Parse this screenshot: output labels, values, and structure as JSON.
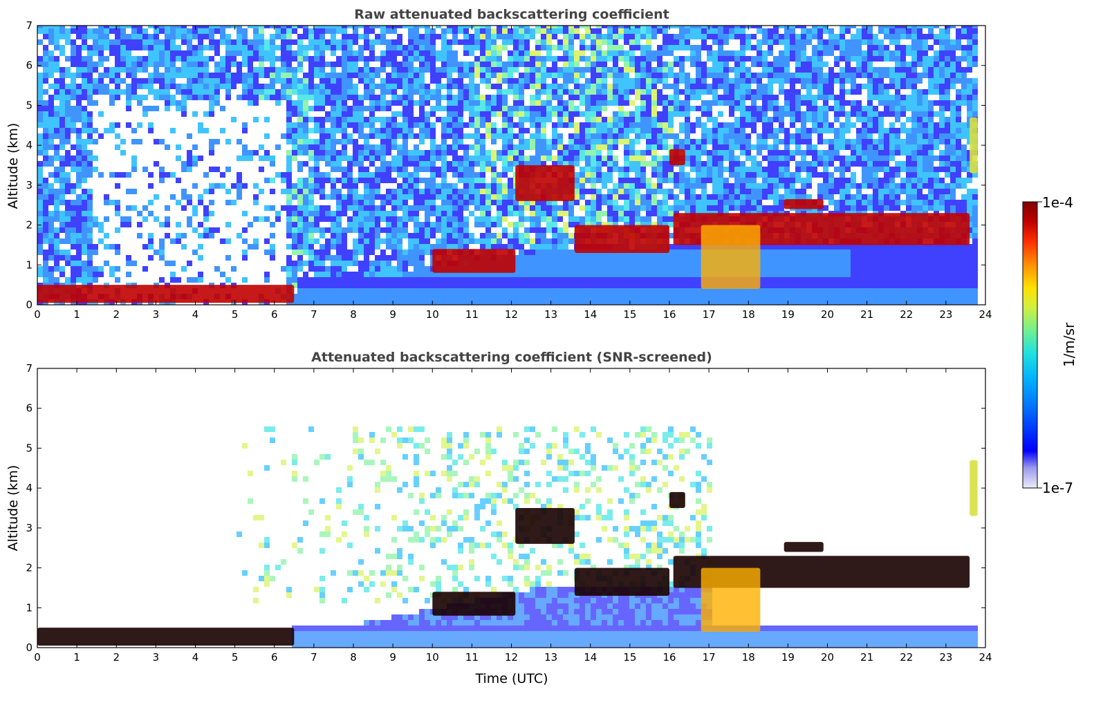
{
  "chart_data": [
    {
      "type": "heatmap",
      "title": "Raw attenuated backscattering coefficient",
      "xlabel": "",
      "ylabel": "Altitude (km)",
      "xlim": [
        0,
        24
      ],
      "ylim": [
        0,
        7
      ],
      "xticks": [
        "0",
        "1",
        "2",
        "3",
        "4",
        "5",
        "6",
        "7",
        "8",
        "9",
        "10",
        "11",
        "12",
        "13",
        "14",
        "15",
        "16",
        "17",
        "18",
        "19",
        "20",
        "21",
        "22",
        "23",
        "24"
      ],
      "yticks": [
        "0",
        "1",
        "2",
        "3",
        "4",
        "5",
        "6",
        "7"
      ],
      "features": [
        {
          "kind": "aerosol_layer",
          "time": [
            0,
            6.5
          ],
          "altitude_km": [
            0.05,
            0.5
          ]
        },
        {
          "kind": "boundary_layer",
          "time": [
            6.5,
            23.8
          ],
          "altitude_km": [
            0,
            0.5
          ]
        },
        {
          "kind": "cloud_layer",
          "time": [
            10,
            12.1
          ],
          "altitude_km": [
            0.8,
            1.4
          ]
        },
        {
          "kind": "cloud_layer",
          "time": [
            12.1,
            13.6
          ],
          "altitude_km": [
            2.6,
            3.5
          ]
        },
        {
          "kind": "cloud_layer",
          "time": [
            13.6,
            16
          ],
          "altitude_km": [
            1.3,
            2.0
          ]
        },
        {
          "kind": "cloud_layer",
          "time": [
            16,
            16.4
          ],
          "altitude_km": [
            3.5,
            3.9
          ]
        },
        {
          "kind": "cloud_layer",
          "time": [
            16.1,
            23.6
          ],
          "altitude_km": [
            1.5,
            2.3
          ]
        },
        {
          "kind": "cloud_layer",
          "time": [
            18.9,
            19.9
          ],
          "altitude_km": [
            2.4,
            2.65
          ]
        },
        {
          "kind": "precipitation",
          "time": [
            16.8,
            18.3
          ],
          "altitude_km": [
            0.4,
            2.0
          ]
        },
        {
          "kind": "aerosol_plume",
          "time": [
            23.6,
            23.8
          ],
          "altitude_km": [
            3.3,
            4.7
          ]
        }
      ]
    },
    {
      "type": "heatmap",
      "title": "Attenuated backscattering coefficient (SNR-screened)",
      "xlabel": "Time (UTC)",
      "ylabel": "Altitude (km)",
      "xlim": [
        0,
        24
      ],
      "ylim": [
        0,
        7
      ],
      "xticks": [
        "0",
        "1",
        "2",
        "3",
        "4",
        "5",
        "6",
        "7",
        "8",
        "9",
        "10",
        "11",
        "12",
        "13",
        "14",
        "15",
        "16",
        "17",
        "18",
        "19",
        "20",
        "21",
        "22",
        "23",
        "24"
      ],
      "yticks": [
        "0",
        "1",
        "2",
        "3",
        "4",
        "5",
        "6",
        "7"
      ]
    }
  ],
  "colorbar": {
    "label": "1/m/sr",
    "max_label": "1e-4",
    "min_label": "1e-7",
    "range": [
      1e-07,
      0.0001
    ],
    "scale": "log",
    "colors": [
      "#e8e8f8",
      "#9a9af0",
      "#0000ff",
      "#0070ff",
      "#00b0ff",
      "#20e0e0",
      "#70f090",
      "#d0f040",
      "#ffe000",
      "#ff9000",
      "#ff3000",
      "#c00000",
      "#800000"
    ]
  }
}
